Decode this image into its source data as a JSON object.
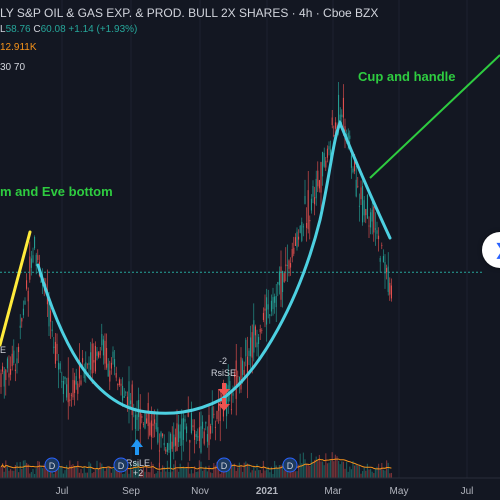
{
  "header": {
    "title": "LY S&P OIL & GAS EXP. & PROD. BULL 2X SHARES · 4h · Cboe BZX",
    "ohlc_prefix": "L",
    "low": "58.76",
    "close_label": "C",
    "close": "60.08",
    "change": "+1.14 (+1.93%)",
    "volume": "12.911K",
    "ma_partial": "30 70"
  },
  "colors": {
    "background": "#131722",
    "up": "#26a69a",
    "down": "#ef5350",
    "cup": "#4dd0e1",
    "annotation": "#2ecc40",
    "yellow_line": "#ffeb3b",
    "volume_ma": "#f7931a"
  },
  "annotations": {
    "cup_handle": "Cup and handle",
    "adam_eve": "m and Eve bottom",
    "rsi_se_num": "-2",
    "rsi_se": "RsiSE",
    "rsi_le": "RsiLE",
    "rsi_le_num": "+2",
    "left_e": "E",
    "dividend": "D"
  },
  "chart_data": {
    "type": "candlestick",
    "x_tick_labels": [
      "Jul",
      "Sep",
      "Nov",
      "2021",
      "Mar",
      "May",
      "Jul"
    ],
    "ylim": [
      26,
      100
    ],
    "price_line": 64,
    "trend": {
      "dates": [
        "May",
        "May",
        "Jun",
        "Jun",
        "Jul",
        "Jul",
        "Aug",
        "Aug",
        "Sep",
        "Sep",
        "Oct",
        "Oct",
        "Nov",
        "Nov",
        "Dec",
        "Dec",
        "Jan",
        "Jan",
        "Feb",
        "Feb",
        "Mar",
        "Mar",
        "Apr",
        "Apr"
      ],
      "values": [
        44,
        48,
        70,
        54,
        40,
        46,
        50,
        42,
        38,
        34,
        30,
        35,
        32,
        38,
        44,
        52,
        58,
        66,
        76,
        84,
        96,
        80,
        72,
        60
      ]
    },
    "dividend_months": [
      "Jul",
      "Sep",
      "Dec",
      "Feb"
    ],
    "signals": [
      {
        "label": "RsiSE",
        "num": "-2",
        "month": "Nov"
      },
      {
        "label": "RsiLE",
        "num": "+2",
        "month": "Sep"
      }
    ]
  }
}
